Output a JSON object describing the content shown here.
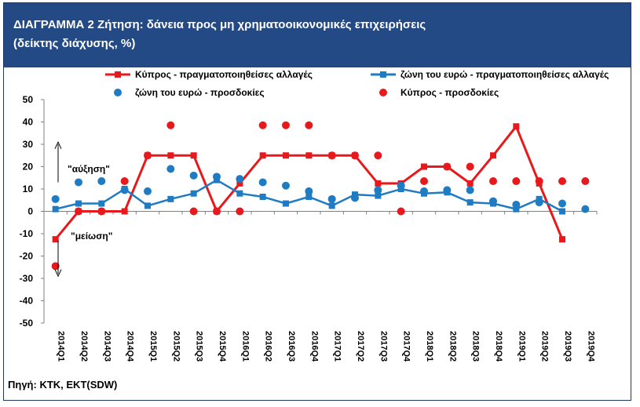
{
  "header": {
    "title_line1": "ΔΙΑΓΡΑΜΜΑ 2 Ζήτηση: δάνεια προς μη χρηματοοικονομικές επιχειρήσεις",
    "title_line2": "(δείκτης διάχυσης, %)"
  },
  "source": "Πηγή: ΚΤΚ, ΕΚΤ(SDW)",
  "colors": {
    "cyprus": "#e8191c",
    "euro": "#1f7bc2",
    "header_bg": "#244a86"
  },
  "chart_data": {
    "type": "line",
    "categories": [
      "2014Q1",
      "2014Q2",
      "2014Q3",
      "2014Q4",
      "2015Q1",
      "2015Q2",
      "2015Q3",
      "2015Q4",
      "2016Q1",
      "2016Q2",
      "2016Q3",
      "2016Q4",
      "2017Q1",
      "2017Q2",
      "2017Q3",
      "2017Q4",
      "2018Q1",
      "2018Q2",
      "2018Q3",
      "2018Q4",
      "2019Q1",
      "2019Q2",
      "2019Q3",
      "2019Q4"
    ],
    "ylim": [
      -50,
      50
    ],
    "yticks": [
      50,
      40,
      30,
      20,
      10,
      0,
      -10,
      -20,
      -30,
      -40,
      -50
    ],
    "annotations": {
      "up": "\"αύξηση\"",
      "down": "\"μείωση\""
    },
    "series": [
      {
        "name": "Κύπρος - πραγματοποιηθείσες αλλαγές",
        "kind": "line",
        "color": "#e8191c",
        "values": [
          -12.5,
          0,
          0,
          0,
          25,
          25,
          25,
          0,
          12.5,
          25,
          25,
          25,
          25,
          25,
          12.5,
          12.5,
          20,
          20,
          12.5,
          25,
          38,
          12.5,
          -12.5,
          null
        ]
      },
      {
        "name": "ζώνη του ευρώ - πραγματοποιηθείσες αλλαγές",
        "kind": "line",
        "color": "#1f7bc2",
        "values": [
          1,
          3.5,
          3.5,
          10,
          2.5,
          5.5,
          8,
          14,
          8,
          6.5,
          3.5,
          6.5,
          2.5,
          7.5,
          7,
          10,
          8,
          8.5,
          4,
          3.5,
          1,
          5.5,
          0,
          null
        ]
      },
      {
        "name": "ζώνη του ευρώ - προσδοκίες",
        "kind": "dots",
        "color": "#1f7bc2",
        "values": [
          5.5,
          13,
          13.5,
          9.5,
          9,
          19,
          16,
          15.5,
          14.5,
          13,
          11.5,
          9,
          5.5,
          6,
          9.5,
          11.5,
          9,
          9.5,
          9.5,
          4.5,
          3,
          4,
          3.5,
          1
        ]
      },
      {
        "name": "Κύπρος - προσδοκίες",
        "kind": "dots",
        "color": "#e8191c",
        "values": [
          -24.5,
          0,
          0,
          13.5,
          25,
          38.5,
          0,
          0,
          0,
          38.5,
          38.5,
          38.5,
          25,
          25,
          25,
          0,
          13.5,
          20,
          20,
          13.5,
          13.5,
          13.5,
          13.5,
          13.5
        ]
      }
    ]
  }
}
